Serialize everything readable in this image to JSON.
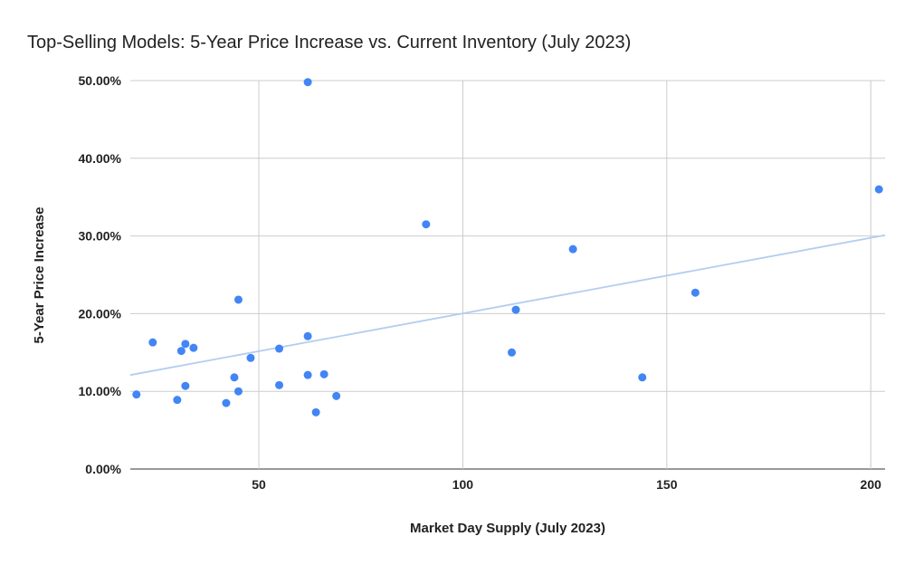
{
  "chart_data": {
    "type": "scatter",
    "title": "Top-Selling Models: 5-Year Price Increase vs. Current Inventory (July 2023)",
    "xlabel": "Market Day Supply (July 2023)",
    "ylabel": "5-Year Price Increase",
    "xlim": [
      18.5,
      203.5
    ],
    "ylim": [
      0,
      50
    ],
    "xticks": [
      50,
      100,
      150,
      200
    ],
    "xtick_labels": [
      "50",
      "100",
      "150",
      "200"
    ],
    "yticks": [
      0,
      10,
      20,
      30,
      40,
      50
    ],
    "ytick_labels": [
      "0.00%",
      "10.00%",
      "20.00%",
      "30.00%",
      "40.00%",
      "50.00%"
    ],
    "grid": true,
    "legend": "none",
    "point_color": "#4285f4",
    "trendline_color": "#b3cdf0",
    "points": [
      {
        "x": 20,
        "y": 9.6
      },
      {
        "x": 24,
        "y": 16.3
      },
      {
        "x": 30,
        "y": 8.9
      },
      {
        "x": 31,
        "y": 15.2
      },
      {
        "x": 32,
        "y": 16.1
      },
      {
        "x": 32,
        "y": 10.7
      },
      {
        "x": 34,
        "y": 15.6
      },
      {
        "x": 42,
        "y": 8.5
      },
      {
        "x": 44,
        "y": 11.8
      },
      {
        "x": 45,
        "y": 21.8
      },
      {
        "x": 45,
        "y": 10.0
      },
      {
        "x": 48,
        "y": 14.3
      },
      {
        "x": 55,
        "y": 15.5
      },
      {
        "x": 55,
        "y": 10.8
      },
      {
        "x": 62,
        "y": 49.8
      },
      {
        "x": 62,
        "y": 17.1
      },
      {
        "x": 62,
        "y": 12.1
      },
      {
        "x": 64,
        "y": 7.3
      },
      {
        "x": 66,
        "y": 12.2
      },
      {
        "x": 69,
        "y": 9.4
      },
      {
        "x": 91,
        "y": 31.5
      },
      {
        "x": 112,
        "y": 15.0
      },
      {
        "x": 113,
        "y": 20.5
      },
      {
        "x": 127,
        "y": 28.3
      },
      {
        "x": 144,
        "y": 11.8
      },
      {
        "x": 157,
        "y": 22.7
      },
      {
        "x": 202,
        "y": 36.0
      }
    ],
    "trendline": {
      "type": "linear",
      "slope": 0.0973,
      "intercept": 10.3
    }
  }
}
